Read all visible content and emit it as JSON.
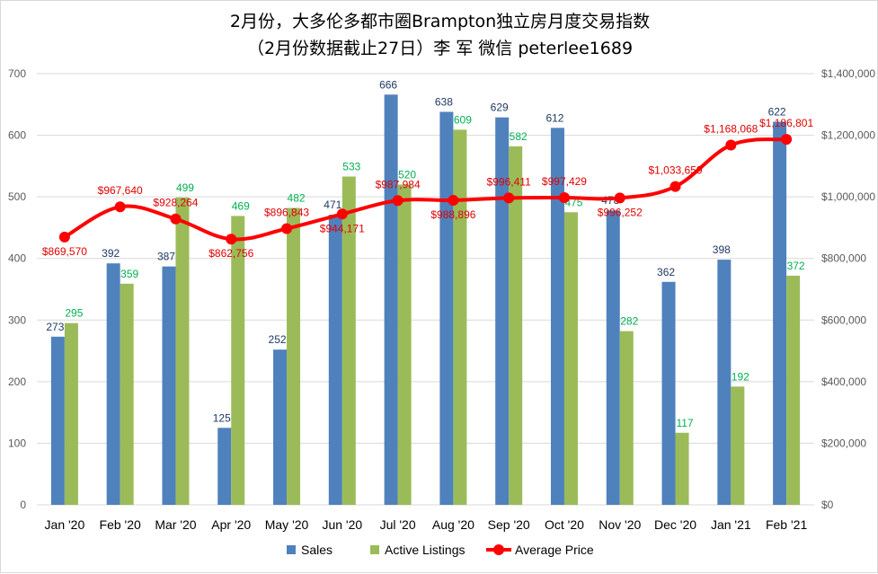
{
  "chart_data": {
    "type": "bar",
    "title": "2月份，大多伦多都市圈Brampton独立房月度交易指数",
    "subtitle": "（2月份数据截止27日）李 军  微信  peterlee1689",
    "categories": [
      "Jan '20",
      "Feb '20",
      "Mar '20",
      "Apr '20",
      "May '20",
      "Jun '20",
      "Jul '20",
      "Aug '20",
      "Sep '20",
      "Oct '20",
      "Nov '20",
      "Dec '20",
      "Jan '21",
      "Feb '21"
    ],
    "series": [
      {
        "name": "Sales",
        "type": "bar",
        "axis": "left",
        "color": "#4f81bd",
        "values": [
          273,
          392,
          387,
          125,
          252,
          471,
          666,
          638,
          629,
          612,
          478,
          362,
          398,
          622
        ],
        "labels": [
          "273",
          "392",
          "387",
          "125",
          "252",
          "471",
          "666",
          "638",
          "629",
          "612",
          "478",
          "362",
          "398",
          "622"
        ]
      },
      {
        "name": "Active Listings",
        "type": "bar",
        "axis": "left",
        "color": "#9bbb59",
        "values": [
          295,
          359,
          499,
          469,
          482,
          533,
          520,
          609,
          582,
          475,
          282,
          117,
          192,
          372
        ],
        "labels": [
          "295",
          "359",
          "499",
          "469",
          "482",
          "533",
          "520",
          "609",
          "582",
          "475",
          "282",
          "117",
          "192",
          "372"
        ]
      },
      {
        "name": "Average Price",
        "type": "line",
        "axis": "right",
        "color": "#ff0000",
        "values": [
          869570,
          967640,
          928264,
          862756,
          896843,
          944171,
          987984,
          988896,
          996411,
          997429,
          996252,
          1033659,
          1168068,
          1186801
        ],
        "labels": [
          "$869,570",
          "$967,640",
          "$928,264",
          "$862,756",
          "$896,843",
          "$944,171",
          "$987,984",
          "$988,896",
          "$996,411",
          "$997,429",
          "$996,252",
          "$1,033,659",
          "$1,168,068",
          "$1,186,801"
        ]
      }
    ],
    "y_left": {
      "min": 0,
      "max": 700,
      "ticks": [
        "0",
        "100",
        "200",
        "300",
        "400",
        "500",
        "600",
        "700"
      ]
    },
    "y_right": {
      "min": 0,
      "max": 1400000,
      "ticks": [
        "$0",
        "$200,000",
        "$400,000",
        "$600,000",
        "$800,000",
        "$1,000,000",
        "$1,200,000",
        "$1,400,000"
      ]
    },
    "grid": true,
    "legend_position": "bottom"
  }
}
